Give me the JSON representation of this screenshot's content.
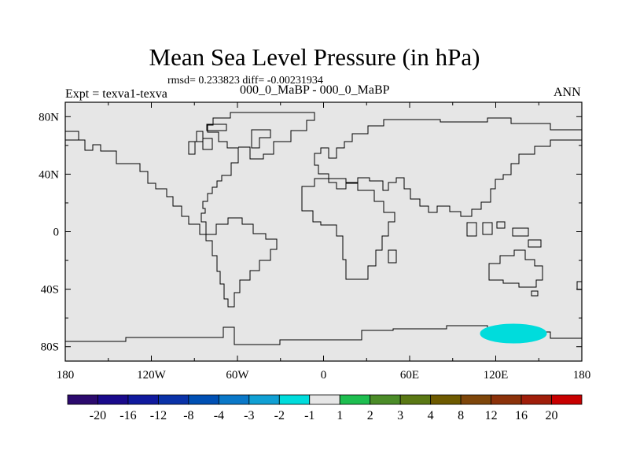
{
  "chart_data": {
    "type": "contour-map",
    "title": "Mean Sea Level Pressure (in hPa)",
    "stats": "rmsd= 0.233823 diff= -0.00231934",
    "subtitle_left": "Expt = texva1-texva",
    "subtitle_center": "000_0_MaBP - 000_0_MaBP",
    "subtitle_right": "ANN",
    "x_ticks": [
      "180",
      "120W",
      "60W",
      "0",
      "60E",
      "120E",
      "180"
    ],
    "y_ticks": [
      "80N",
      "40N",
      "0",
      "40S",
      "80S"
    ],
    "background_color": "#e6e6e6",
    "colorbar": {
      "colors": [
        "#2c0a6e",
        "#1a0a8c",
        "#101a9e",
        "#0a32a8",
        "#0050b4",
        "#0a78c8",
        "#10a0d4",
        "#00dcdc",
        "#e6e6e6",
        "#1ebe50",
        "#4b8c28",
        "#5a7814",
        "#6e5a00",
        "#7e460a",
        "#8c320a",
        "#a01e0a",
        "#c80000"
      ],
      "labels": [
        "-20",
        "-16",
        "-12",
        "-8",
        "-4",
        "-3",
        "-2",
        "-1",
        "1",
        "2",
        "3",
        "4",
        "8",
        "12",
        "16",
        "20"
      ]
    },
    "anomaly_region": {
      "color": "#00dcdc",
      "lon_range": [
        112,
        157
      ],
      "lat_range": [
        -77,
        -63
      ],
      "value_bin": "-2 to -1"
    }
  }
}
